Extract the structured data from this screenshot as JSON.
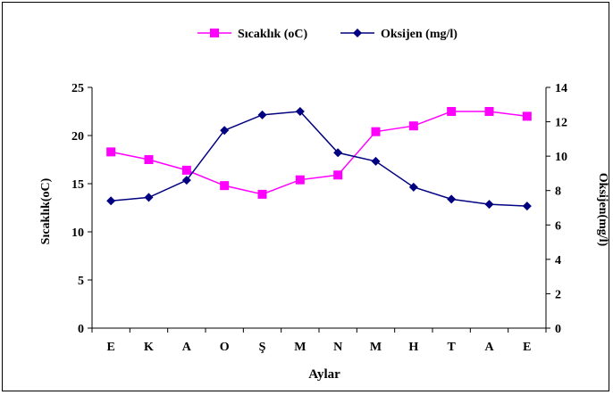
{
  "chart_data": {
    "type": "line",
    "xlabel": "Aylar",
    "ylabel_left": "Sıcaklık(oC)",
    "ylabel_right": "Oksijen(mg/l)",
    "categories": [
      "E",
      "K",
      "A",
      "O",
      "Ş",
      "M",
      "N",
      "M",
      "H",
      "T",
      "A",
      "E"
    ],
    "ylim_left": [
      0,
      25
    ],
    "yticks_left": [
      0,
      5,
      10,
      15,
      20,
      25
    ],
    "ylim_right": [
      0,
      14
    ],
    "yticks_right": [
      0,
      2,
      4,
      6,
      8,
      10,
      12,
      14
    ],
    "grid": false,
    "legend_position": "top",
    "series": [
      {
        "name": "Sıcaklık (oC)",
        "axis": "left",
        "color": "#ff00ff",
        "marker": "square",
        "values": [
          18.3,
          17.5,
          16.4,
          14.8,
          13.9,
          15.4,
          15.9,
          20.4,
          21.0,
          22.5,
          22.5,
          22.0
        ]
      },
      {
        "name": "Oksijen (mg/l)",
        "axis": "right",
        "color": "#000080",
        "marker": "diamond",
        "values": [
          7.4,
          7.6,
          8.6,
          11.5,
          12.4,
          12.6,
          10.2,
          9.7,
          8.2,
          7.5,
          7.2,
          7.1
        ]
      }
    ]
  }
}
